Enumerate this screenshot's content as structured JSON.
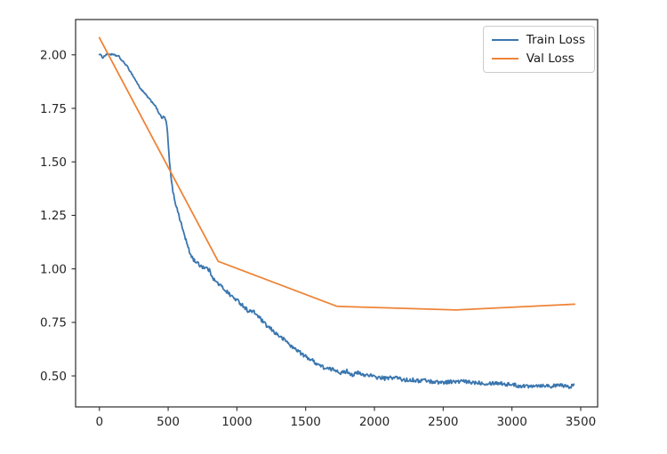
{
  "figure": {
    "background": "#ffffff",
    "spine_color": "#2b2b2b",
    "tick_label_color": "#262626"
  },
  "legend": {
    "position": "upper right",
    "items": [
      {
        "label": "Train Loss",
        "color": "#3a76af"
      },
      {
        "label": "Val Loss",
        "color": "#ee8437"
      }
    ]
  },
  "chart_data": {
    "type": "line",
    "title": "",
    "xlabel": "",
    "ylabel": "",
    "grid": false,
    "legend_position": "upper right",
    "xlim": [
      -173,
      3623
    ],
    "ylim": [
      0.355,
      2.165
    ],
    "x_ticks": [
      0,
      500,
      1000,
      1500,
      2000,
      2500,
      3000,
      3500
    ],
    "y_ticks": [
      0.5,
      0.75,
      1.0,
      1.25,
      1.5,
      1.75,
      2.0
    ],
    "series": [
      {
        "name": "Train Loss",
        "color": "#3a76af",
        "style": "noisy",
        "line_width": 1.8,
        "noise_amplitude": 0.012,
        "points": [
          [
            0,
            2.005
          ],
          [
            25,
            1.99
          ],
          [
            50,
            2.005
          ],
          [
            95,
            2.0
          ],
          [
            140,
            1.995
          ],
          [
            190,
            1.955
          ],
          [
            230,
            1.915
          ],
          [
            290,
            1.85
          ],
          [
            340,
            1.815
          ],
          [
            400,
            1.765
          ],
          [
            440,
            1.72
          ],
          [
            458,
            1.7
          ],
          [
            468,
            1.715
          ],
          [
            482,
            1.695
          ],
          [
            492,
            1.665
          ],
          [
            505,
            1.54
          ],
          [
            518,
            1.44
          ],
          [
            532,
            1.37
          ],
          [
            552,
            1.31
          ],
          [
            578,
            1.255
          ],
          [
            605,
            1.195
          ],
          [
            630,
            1.14
          ],
          [
            655,
            1.085
          ],
          [
            685,
            1.05
          ],
          [
            725,
            1.02
          ],
          [
            780,
            1.0
          ],
          [
            835,
            0.955
          ],
          [
            890,
            0.92
          ],
          [
            950,
            0.885
          ],
          [
            1020,
            0.848
          ],
          [
            1090,
            0.808
          ],
          [
            1155,
            0.778
          ],
          [
            1220,
            0.73
          ],
          [
            1300,
            0.695
          ],
          [
            1370,
            0.655
          ],
          [
            1440,
            0.617
          ],
          [
            1510,
            0.585
          ],
          [
            1580,
            0.558
          ],
          [
            1650,
            0.54
          ],
          [
            1720,
            0.527
          ],
          [
            1800,
            0.515
          ],
          [
            1900,
            0.505
          ],
          [
            2000,
            0.497
          ],
          [
            2100,
            0.49
          ],
          [
            2200,
            0.484
          ],
          [
            2350,
            0.478
          ],
          [
            2500,
            0.472
          ],
          [
            2650,
            0.47
          ],
          [
            2800,
            0.468
          ],
          [
            2950,
            0.463
          ],
          [
            3100,
            0.46
          ],
          [
            3250,
            0.457
          ],
          [
            3450,
            0.455
          ]
        ]
      },
      {
        "name": "Val Loss",
        "color": "#ee8437",
        "style": "straight",
        "line_width": 1.8,
        "noise_amplitude": 0,
        "points": [
          [
            0,
            2.08
          ],
          [
            864,
            1.035
          ],
          [
            1728,
            0.825
          ],
          [
            2592,
            0.808
          ],
          [
            3456,
            0.835
          ]
        ]
      }
    ]
  }
}
